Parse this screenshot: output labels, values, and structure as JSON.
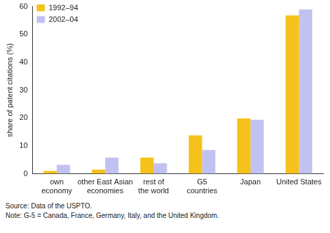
{
  "chart_data": {
    "type": "bar",
    "categories": [
      [
        "own",
        "economy"
      ],
      [
        "other East Asian",
        "economies"
      ],
      [
        "rest of",
        "the world"
      ],
      [
        "G5",
        "countries"
      ],
      [
        "Japan"
      ],
      [
        "United States"
      ]
    ],
    "series": [
      {
        "name": "1992–94",
        "color": "#f5c21b",
        "values": [
          1.0,
          1.5,
          5.8,
          13.8,
          19.9,
          56.8
        ]
      },
      {
        "name": "2002–04",
        "color": "#c2c2f2",
        "values": [
          3.2,
          5.8,
          3.8,
          8.6,
          19.4,
          59.0
        ]
      }
    ],
    "y_label": "share of patent citations (%)",
    "ylim": [
      0,
      60
    ],
    "yticks": [
      0,
      10,
      20,
      30,
      40,
      50,
      60
    ],
    "grid": false,
    "legend": "upper left",
    "notes": [
      "Source: Data of the USPTO.",
      "Note: G-5 = Canada, France, Germany, Italy, and the United Kingdom."
    ]
  }
}
